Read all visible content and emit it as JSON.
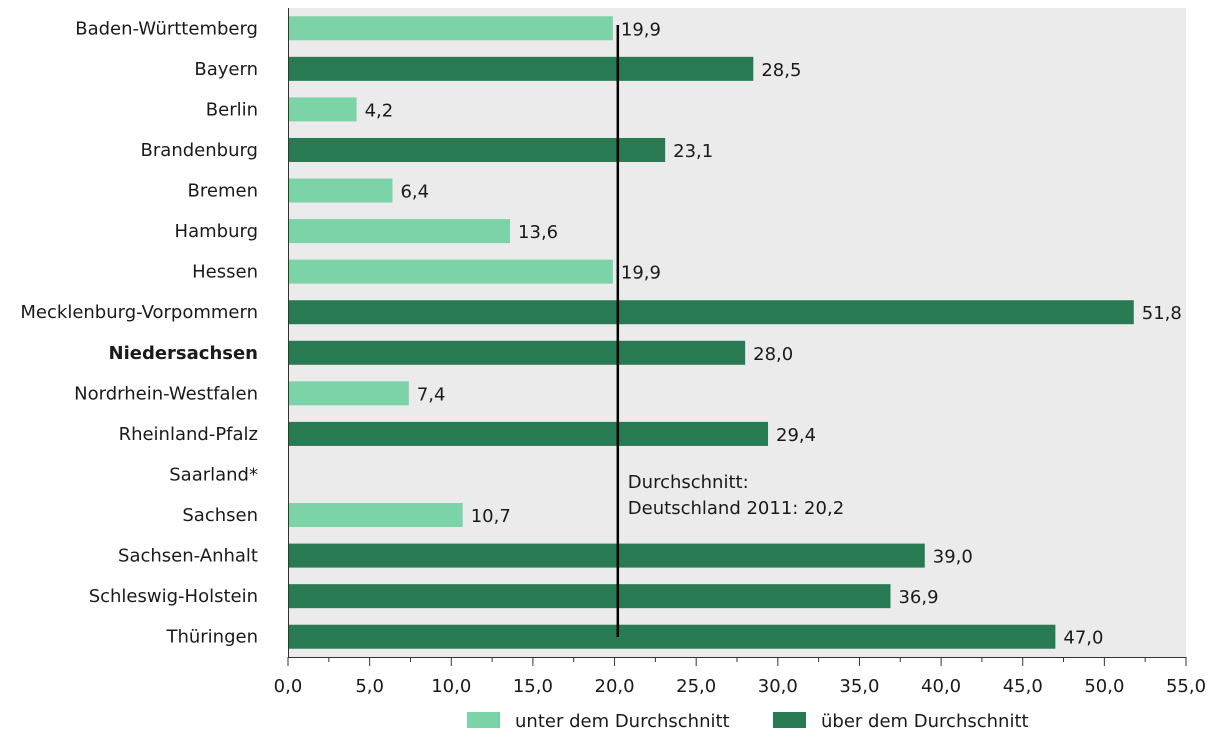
{
  "chart_data": {
    "type": "bar",
    "orientation": "horizontal",
    "categories": [
      "Baden-Württemberg",
      "Bayern",
      "Berlin",
      "Brandenburg",
      "Bremen",
      "Hamburg",
      "Hessen",
      "Mecklenburg-Vorpommern",
      "Niedersachsen",
      "Nordrhein-Westfalen",
      "Rheinland-Pfalz",
      "Saarland*",
      "Sachsen",
      "Sachsen-Anhalt",
      "Schleswig-Holstein",
      "Thüringen"
    ],
    "highlight_category": "Niedersachsen",
    "values": [
      19.9,
      28.5,
      4.2,
      23.1,
      6.4,
      13.6,
      19.9,
      51.8,
      28.0,
      7.4,
      29.4,
      null,
      10.7,
      39.0,
      36.9,
      47.0
    ],
    "value_labels": [
      "19,9",
      "28,5",
      "4,2",
      "23,1",
      "6,4",
      "13,6",
      "19,9",
      "51,8",
      "28,0",
      "7,4",
      "29,4",
      "",
      "10,7",
      "39,0",
      "36,9",
      "47,0"
    ],
    "xlim": [
      0,
      55
    ],
    "xticks": [
      0,
      5,
      10,
      15,
      20,
      25,
      30,
      35,
      40,
      45,
      50,
      55
    ],
    "xtick_labels": [
      "0,0",
      "5,0",
      "10,0",
      "15,0",
      "20,0",
      "25,0",
      "30,0",
      "35,0",
      "40,0",
      "45,0",
      "50,0",
      "55,0"
    ],
    "reference_line": {
      "value": 20.2,
      "label_lines": [
        "Durchschnitt:",
        "Deutschland 2011: 20,2"
      ]
    },
    "series": [
      {
        "name": "unter dem Durchschnitt",
        "color": "#7dd3a8"
      },
      {
        "name": "über dem Durchschnitt",
        "color": "#277a52"
      }
    ],
    "legend_position": "bottom",
    "plot_background": "#ebebeb",
    "grid": false
  }
}
